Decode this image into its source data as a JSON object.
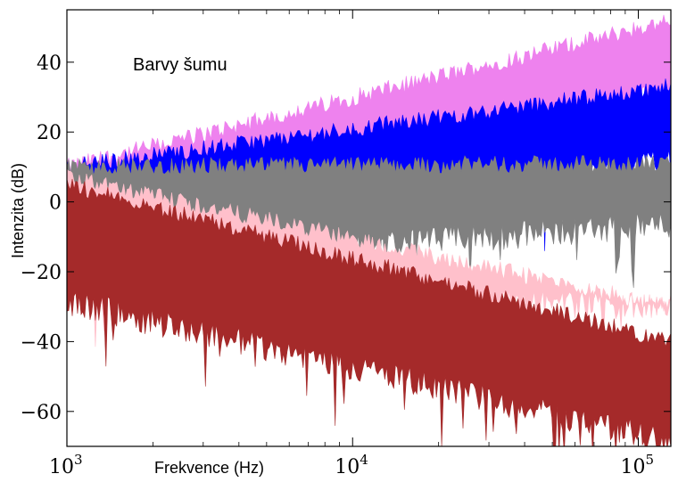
{
  "chart_data": {
    "type": "area",
    "title": "Barvy šumu",
    "xlabel": "Frekvence (Hz)",
    "ylabel": "Intenzita (dB)",
    "xscale": "log",
    "xlim": [
      1000,
      130000
    ],
    "ylim": [
      -70,
      55
    ],
    "x_ticks": [
      {
        "value": 1000,
        "base": "10",
        "exp": "3"
      },
      {
        "value": 10000,
        "base": "10",
        "exp": "4"
      },
      {
        "value": 100000,
        "base": "10",
        "exp": "5"
      }
    ],
    "y_ticks": [
      {
        "value": 40,
        "label": "40"
      },
      {
        "value": 20,
        "label": "20"
      },
      {
        "value": 0,
        "label": "0"
      },
      {
        "value": -20,
        "label": "−20"
      },
      {
        "value": -40,
        "label": "−40"
      },
      {
        "value": -60,
        "label": "−60"
      }
    ],
    "grid": false,
    "legend": "none",
    "series": [
      {
        "color": "#ee82ee",
        "slope_db_per_decade": 20,
        "top_at_1k": 10,
        "top_at_end": 52,
        "bottom_at_1k": -20,
        "bottom_at_end": 30
      },
      {
        "color": "#0000ff",
        "slope_db_per_decade": 10,
        "top_at_1k": 10,
        "top_at_end": 33,
        "bottom_at_1k": -20,
        "bottom_at_end": 10
      },
      {
        "color": "#808080",
        "slope_db_per_decade": 0,
        "top_at_1k": 10,
        "top_at_end": 11,
        "bottom_at_1k": -20,
        "bottom_at_end": -8
      },
      {
        "color": "#ffc0cb",
        "slope_db_per_decade": -10,
        "top_at_1k": 7,
        "top_at_end": -30,
        "bottom_at_1k": -25,
        "bottom_at_end": -32
      },
      {
        "color": "#a52a2a",
        "slope_db_per_decade": -20,
        "top_at_1k": 5,
        "top_at_end": -40,
        "bottom_at_1k": -30,
        "bottom_at_end": -70
      }
    ]
  }
}
